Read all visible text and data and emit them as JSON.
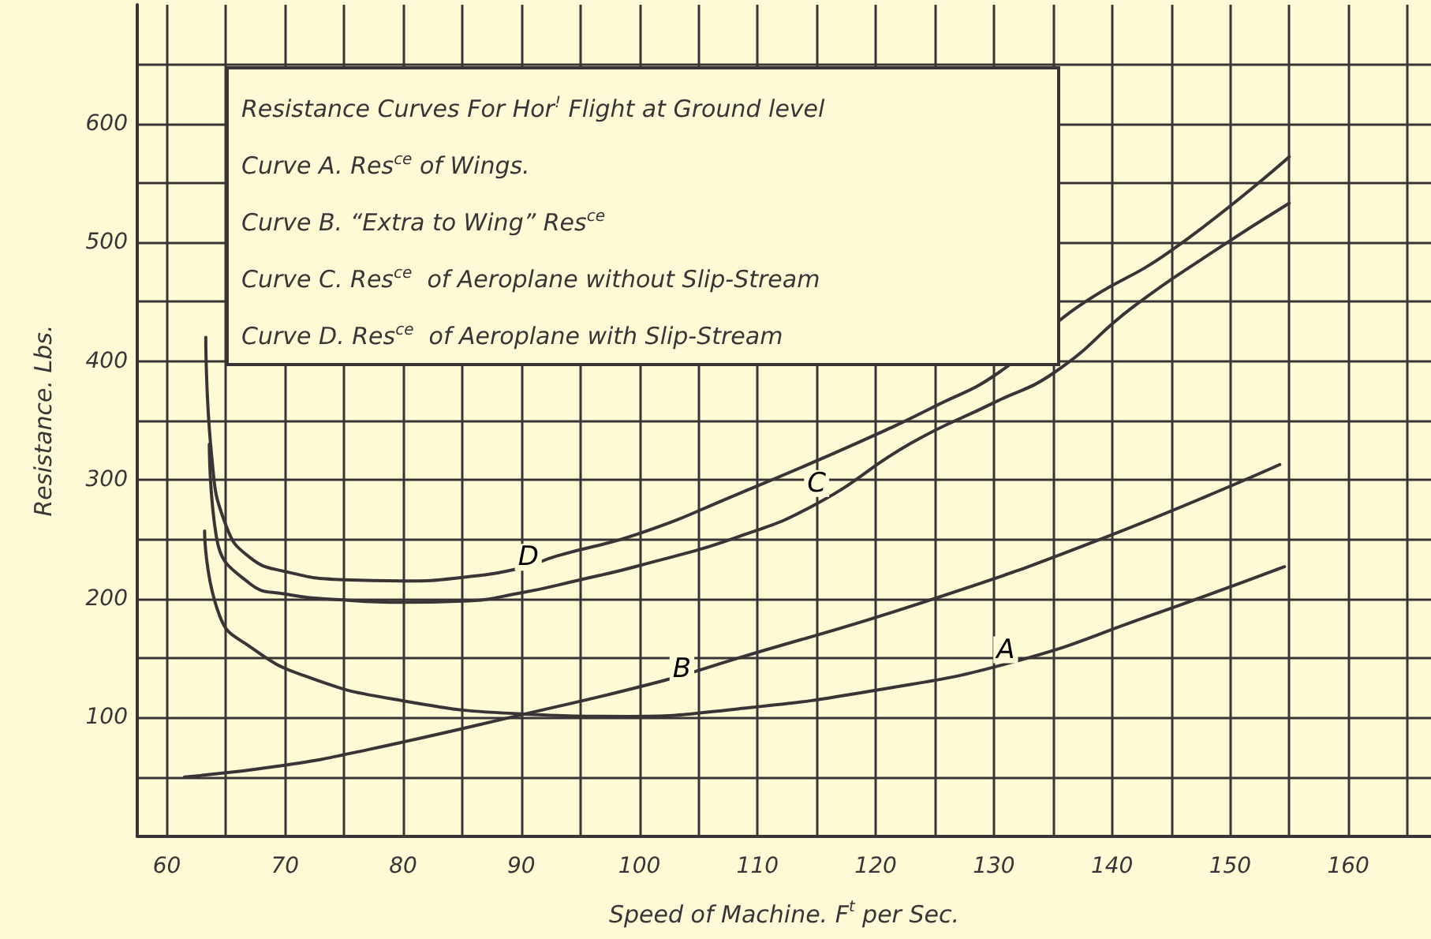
{
  "chart_data": {
    "type": "line",
    "title": "Resistance Curves For Hor$^{!}$ Flight at Ground level",
    "annotations": [
      "Curve A. Res$^{ce}$ of Wings.",
      "Curve B. “Extra to Wing” Res$^{ce}$",
      "Curve C. Res$^{ce}$  of Aeroplane without Slip-Stream",
      "Curve D. Res$^{ce}$  of Aeroplane with Slip-Stream",
      {
        "text": "A",
        "x": 131,
        "y": 157
      },
      {
        "text": "B",
        "x": 103.6,
        "y": 141
      },
      {
        "text": "C",
        "x": 115,
        "y": 297
      },
      {
        "text": "D",
        "x": 90.6,
        "y": 235
      }
    ],
    "xlabel": "Speed of Machine. F$^{t}$ per Sec.",
    "ylabel": "Resistance. Lbs.",
    "series": [
      {
        "color": "#3b3436",
        "x": [
          63.2,
          64.5,
          67,
          71.7,
          79.5,
          90.3,
          99,
          108,
          120,
          131.7,
          143,
          154.6
        ],
        "values": [
          257,
          185,
          160,
          135,
          115,
          103,
          101,
          107,
          123,
          147,
          185,
          227
        ]
      },
      {
        "color": "#3b3436",
        "x": [
          61.5,
          70,
          77,
          90.3,
          102,
          108,
          124,
          139.5,
          154.2
        ],
        "values": [
          50,
          60,
          73,
          103,
          131,
          149,
          197,
          252,
          313
        ]
      },
      {
        "color": "#3b3436",
        "x": [
          63.6,
          64.2,
          67,
          70,
          75,
          80,
          85,
          90,
          95,
          100,
          108.3,
          115,
          123,
          130,
          135.2,
          141.7,
          148.7,
          155
        ],
        "values": [
          330,
          252,
          213,
          204,
          199,
          197,
          198,
          205,
          216,
          228,
          252,
          280,
          331,
          365,
          391,
          445,
          493,
          533
        ]
      },
      {
        "color": "#3b3436",
        "x": [
          63.3,
          63.8,
          65,
          67,
          70,
          75,
          80,
          85,
          90,
          93,
          100,
          108.3,
          118.4,
          125,
          130.5,
          137,
          145,
          155
        ],
        "values": [
          420,
          320,
          262,
          235,
          223,
          216,
          215,
          218,
          226,
          236,
          255,
          288,
          331,
          362,
          391,
          445,
          493,
          572
        ]
      }
    ],
    "xlim": [
      57.5,
      167
    ],
    "xticks": [
      60,
      {
        "value": 65,
        "label": null
      },
      70,
      {
        "value": 75,
        "label": null
      },
      80,
      {
        "value": 85,
        "label": null
      },
      90,
      {
        "value": 95,
        "label": null
      },
      100,
      {
        "value": 105,
        "label": null
      },
      110,
      {
        "value": 115,
        "label": null
      },
      120,
      {
        "value": 125,
        "label": null
      },
      130,
      {
        "value": 135,
        "label": null
      },
      140,
      {
        "value": 145,
        "label": null
      },
      150,
      {
        "value": 155,
        "label": null
      },
      160,
      {
        "value": 165,
        "label": null
      }
    ],
    "ylim": [
      0,
      700
    ],
    "yticks": [
      {
        "value": 50,
        "label": null
      },
      100,
      {
        "value": 150,
        "label": null
      },
      200,
      {
        "value": 250,
        "label": null
      },
      300,
      {
        "value": 350,
        "label": null
      },
      400,
      {
        "value": 450,
        "label": null
      },
      500,
      {
        "value": 550,
        "label": null
      },
      600,
      {
        "value": 650,
        "label": null
      }
    ],
    "grid": true,
    "marker": "none",
    "line_style": "solid"
  }
}
